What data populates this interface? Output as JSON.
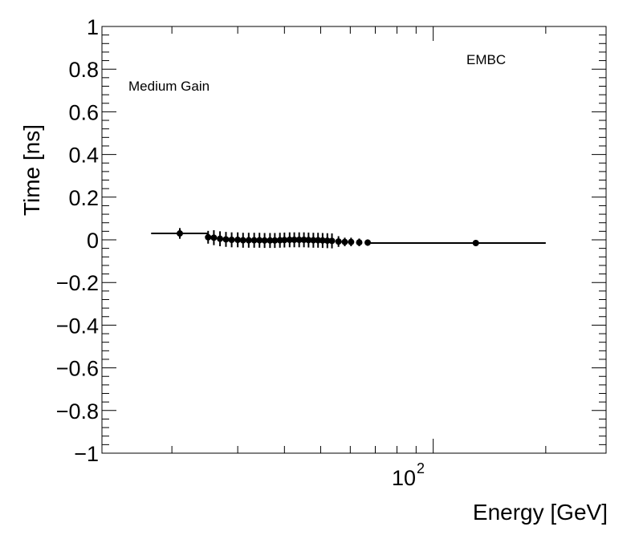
{
  "chart_data": {
    "type": "scatter",
    "xlabel": "Energy [GeV]",
    "ylabel": "Time [ns]",
    "x_scale": "log",
    "xlim": [
      13,
      290
    ],
    "ylim": [
      -1,
      1
    ],
    "y_ticks": [
      -1,
      -0.8,
      -0.6,
      -0.4,
      -0.2,
      0,
      0.2,
      0.4,
      0.6,
      0.8,
      1
    ],
    "y_tick_labels": [
      "−1",
      "−0.8",
      "−0.6",
      "−0.4",
      "−0.2",
      "0",
      "0.2",
      "0.4",
      "0.6",
      "0.8",
      "1"
    ],
    "x_tick_label": {
      "base": "10",
      "exponent": "2",
      "value": 100
    },
    "grid": false,
    "annotations": [
      "Medium Gain",
      "EMBC"
    ],
    "series": [
      {
        "marker": "circle",
        "points": [
          {
            "x": 21.0,
            "y": 0.03,
            "xerr": [
              17.6,
              25.0
            ],
            "yerr": 0.025
          },
          {
            "x": 25.0,
            "y": 0.012,
            "xerr": [
              24.7,
              25.3
            ],
            "yerr": 0.03
          },
          {
            "x": 25.9,
            "y": 0.01,
            "xerr": [
              25.6,
              26.2
            ],
            "yerr": 0.035
          },
          {
            "x": 26.9,
            "y": 0.005,
            "xerr": [
              26.6,
              27.2
            ],
            "yerr": 0.035
          },
          {
            "x": 27.9,
            "y": 0.002,
            "xerr": [
              27.6,
              28.2
            ],
            "yerr": 0.035
          },
          {
            "x": 28.9,
            "y": 0.0,
            "xerr": [
              28.6,
              29.2
            ],
            "yerr": 0.035
          },
          {
            "x": 30.0,
            "y": 0.0,
            "xerr": [
              29.7,
              30.3
            ],
            "yerr": 0.035
          },
          {
            "x": 31.0,
            "y": -0.002,
            "xerr": [
              30.7,
              31.3
            ],
            "yerr": 0.035
          },
          {
            "x": 32.1,
            "y": -0.002,
            "xerr": [
              31.8,
              32.4
            ],
            "yerr": 0.035
          },
          {
            "x": 33.2,
            "y": -0.002,
            "xerr": [
              32.9,
              33.5
            ],
            "yerr": 0.035
          },
          {
            "x": 34.3,
            "y": -0.002,
            "xerr": [
              34.0,
              34.6
            ],
            "yerr": 0.035
          },
          {
            "x": 35.4,
            "y": -0.003,
            "xerr": [
              35.1,
              35.7
            ],
            "yerr": 0.035
          },
          {
            "x": 36.6,
            "y": -0.003,
            "xerr": [
              36.3,
              36.9
            ],
            "yerr": 0.035
          },
          {
            "x": 37.7,
            "y": -0.003,
            "xerr": [
              37.4,
              38.0
            ],
            "yerr": 0.035
          },
          {
            "x": 38.9,
            "y": -0.002,
            "xerr": [
              38.6,
              39.2
            ],
            "yerr": 0.035
          },
          {
            "x": 40.0,
            "y": -0.001,
            "xerr": [
              39.7,
              40.3
            ],
            "yerr": 0.035
          },
          {
            "x": 41.3,
            "y": 0.0,
            "xerr": [
              41.0,
              41.6
            ],
            "yerr": 0.035
          },
          {
            "x": 42.5,
            "y": 0.0,
            "xerr": [
              42.2,
              42.8
            ],
            "yerr": 0.035
          },
          {
            "x": 43.8,
            "y": 0.0,
            "xerr": [
              43.5,
              44.1
            ],
            "yerr": 0.035
          },
          {
            "x": 45.1,
            "y": 0.0,
            "xerr": [
              44.8,
              45.4
            ],
            "yerr": 0.035
          },
          {
            "x": 46.4,
            "y": -0.001,
            "xerr": [
              46.1,
              46.7
            ],
            "yerr": 0.035
          },
          {
            "x": 47.8,
            "y": -0.002,
            "xerr": [
              47.5,
              48.1
            ],
            "yerr": 0.035
          },
          {
            "x": 49.2,
            "y": -0.002,
            "xerr": [
              48.9,
              49.5
            ],
            "yerr": 0.035
          },
          {
            "x": 50.6,
            "y": -0.003,
            "xerr": [
              50.3,
              50.9
            ],
            "yerr": 0.035
          },
          {
            "x": 52.1,
            "y": -0.004,
            "xerr": [
              51.8,
              52.4
            ],
            "yerr": 0.035
          },
          {
            "x": 53.6,
            "y": -0.005,
            "xerr": [
              53.3,
              53.9
            ],
            "yerr": 0.035
          },
          {
            "x": 55.8,
            "y": -0.008,
            "xerr": [
              55.2,
              56.4
            ],
            "yerr": 0.025
          },
          {
            "x": 58.0,
            "y": -0.01,
            "xerr": [
              57.4,
              58.6
            ],
            "yerr": 0.02
          },
          {
            "x": 60.3,
            "y": -0.01,
            "xerr": [
              59.7,
              60.9
            ],
            "yerr": 0.02
          },
          {
            "x": 63.4,
            "y": -0.012,
            "xerr": [
              62.6,
              64.2
            ],
            "yerr": 0.018
          },
          {
            "x": 66.8,
            "y": -0.013,
            "xerr": [
              66.0,
              67.6
            ],
            "yerr": 0.015
          },
          {
            "x": 130.0,
            "y": -0.015,
            "xerr": [
              68.0,
              200.0
            ],
            "yerr": 0.005
          }
        ]
      }
    ]
  }
}
